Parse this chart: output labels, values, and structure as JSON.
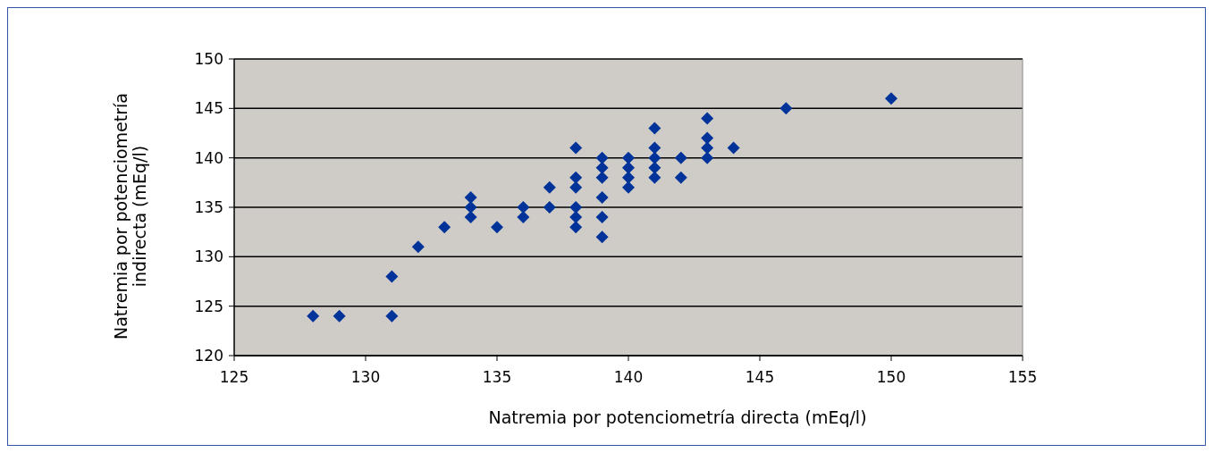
{
  "chart_data": {
    "type": "scatter",
    "xlabel": "Natremia por potenciometría directa (mEq/l)",
    "ylabel": "Natremia por potenciometría indirecta (mEq/l)",
    "x": [
      128,
      129,
      131,
      131,
      132,
      133,
      134,
      134,
      134,
      135,
      136,
      136,
      137,
      137,
      138,
      138,
      138,
      138,
      138,
      138,
      139,
      139,
      139,
      139,
      139,
      139,
      140,
      140,
      140,
      140,
      141,
      141,
      141,
      141,
      141,
      142,
      142,
      143,
      143,
      143,
      143,
      144,
      146,
      150
    ],
    "values": [
      124,
      124,
      128,
      124,
      131,
      133,
      136,
      135,
      134,
      133,
      135,
      134,
      137,
      135,
      141,
      138,
      137,
      135,
      134,
      133,
      140,
      139,
      138,
      136,
      134,
      132,
      140,
      139,
      138,
      137,
      143,
      141,
      140,
      139,
      138,
      140,
      138,
      144,
      142,
      141,
      140,
      141,
      145,
      146
    ],
    "color": "#003399",
    "marker": "diamond",
    "xlim": [
      125,
      155
    ],
    "xticks": [
      125,
      130,
      135,
      140,
      145,
      150,
      155
    ],
    "ylim": [
      120,
      150
    ],
    "yticks": [
      120,
      125,
      130,
      135,
      140,
      145,
      150
    ],
    "grid": "y"
  }
}
